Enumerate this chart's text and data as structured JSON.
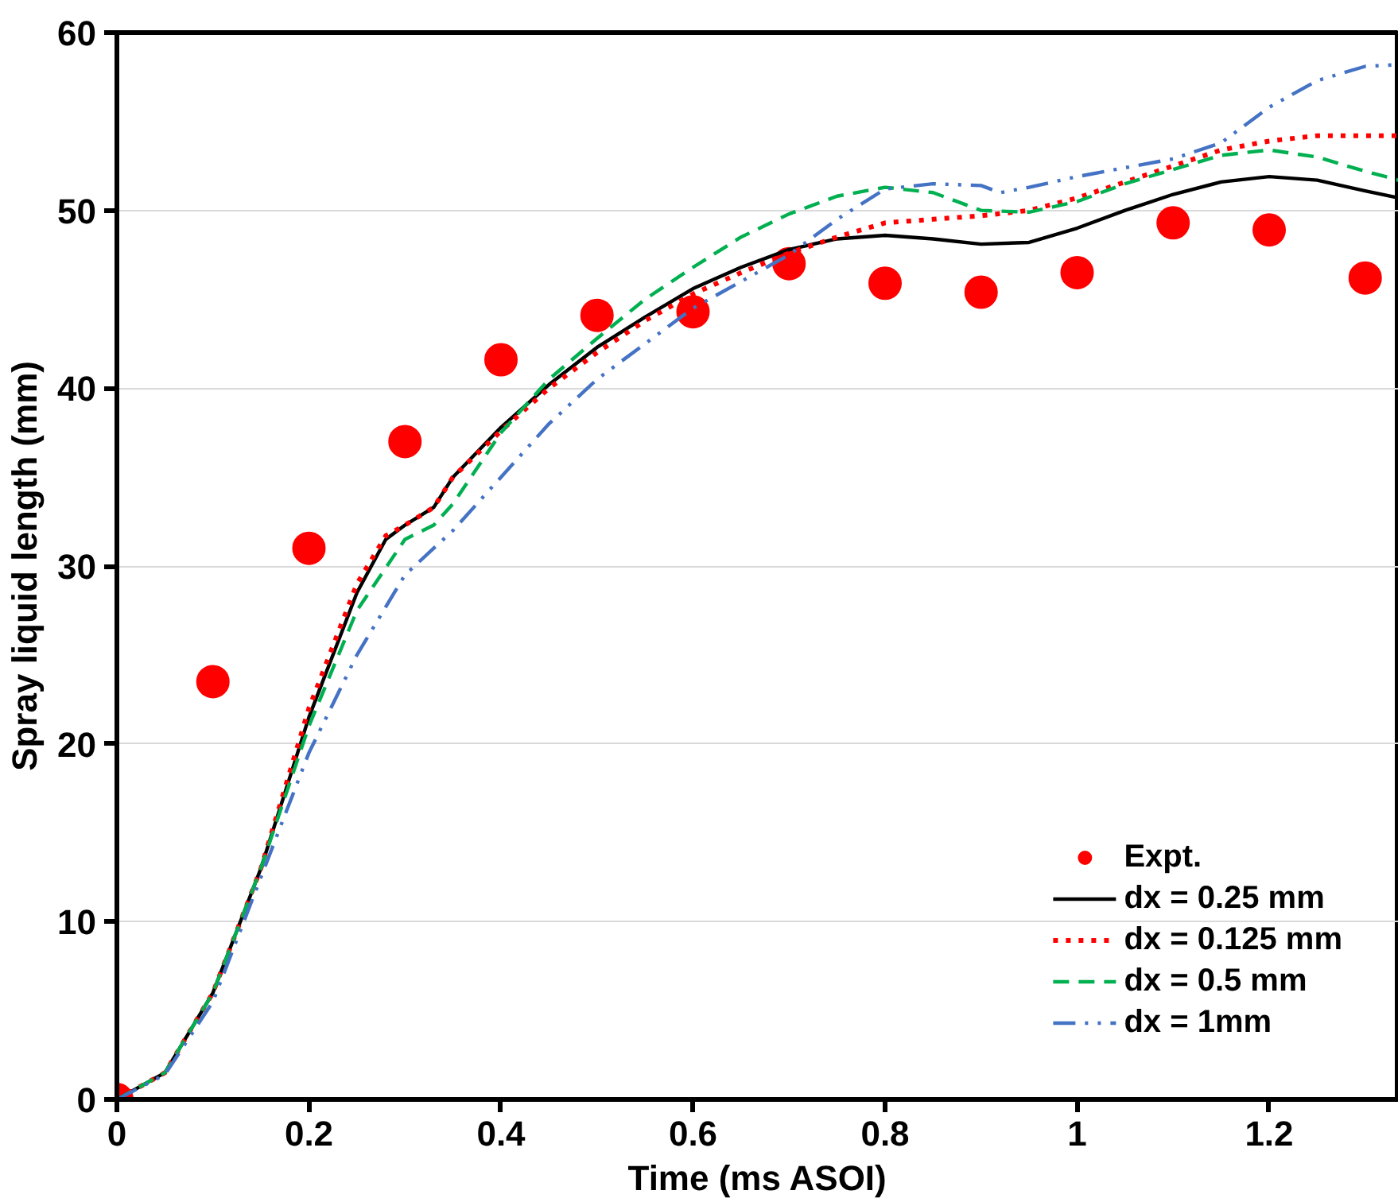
{
  "chart_data": {
    "type": "line",
    "xlabel": "Time (ms ASOI)",
    "ylabel": "Spray liquid length (mm)",
    "xlim": [
      0,
      1.335
    ],
    "xticks": [
      0,
      0.2,
      0.4,
      0.6,
      0.8,
      1,
      1.2
    ],
    "ylim": [
      0,
      60
    ],
    "yticks": [
      0,
      10,
      20,
      30,
      40,
      50,
      60
    ],
    "grid": "y",
    "legend": "bottom right",
    "series": [
      {
        "name": "Expt.",
        "type": "scatter",
        "marker": "circle",
        "color": "#ff0000",
        "x": [
          0,
          0.1,
          0.2,
          0.3,
          0.4,
          0.5,
          0.6,
          0.7,
          0.8,
          0.9,
          1.0,
          1.1,
          1.2,
          1.3
        ],
        "values": [
          0,
          23.5,
          31.0,
          37.0,
          41.6,
          44.1,
          44.3,
          47.0,
          45.9,
          45.4,
          46.5,
          49.3,
          48.9,
          46.2
        ]
      },
      {
        "name": "dx = 0.25 mm",
        "line_style": "solid",
        "color": "#000000",
        "x": [
          0,
          0.05,
          0.1,
          0.15,
          0.2,
          0.25,
          0.28,
          0.3,
          0.33,
          0.35,
          0.4,
          0.45,
          0.5,
          0.55,
          0.6,
          0.65,
          0.7,
          0.75,
          0.8,
          0.85,
          0.9,
          0.95,
          1.0,
          1.05,
          1.1,
          1.15,
          1.2,
          1.25,
          1.3,
          1.335
        ],
        "values": [
          0,
          1.5,
          6,
          13,
          21.5,
          28.5,
          31.5,
          32.3,
          33.3,
          35,
          37.8,
          40.2,
          42.3,
          44,
          45.6,
          46.8,
          47.8,
          48.4,
          48.6,
          48.4,
          48.1,
          48.2,
          49,
          50,
          50.9,
          51.6,
          51.9,
          51.7,
          51.1,
          50.7
        ]
      },
      {
        "name": "dx = 0.125 mm",
        "line_style": "dotted",
        "color": "#ff0000",
        "x": [
          0,
          0.05,
          0.1,
          0.15,
          0.2,
          0.25,
          0.28,
          0.3,
          0.33,
          0.35,
          0.4,
          0.45,
          0.5,
          0.55,
          0.6,
          0.65,
          0.7,
          0.75,
          0.8,
          0.85,
          0.9,
          0.95,
          1.0,
          1.05,
          1.1,
          1.15,
          1.2,
          1.25,
          1.3,
          1.335
        ],
        "values": [
          0,
          1.5,
          6,
          13,
          22,
          29,
          31.7,
          32.3,
          33.3,
          35,
          37.6,
          40,
          42,
          43.8,
          45.3,
          46.5,
          47.6,
          48.5,
          49.3,
          49.5,
          49.7,
          50,
          50.7,
          51.6,
          52.5,
          53.4,
          53.9,
          54.2,
          54.2,
          54.2
        ]
      },
      {
        "name": "dx = 0.5 mm",
        "line_style": "dashed",
        "color": "#00b050",
        "x": [
          0,
          0.05,
          0.1,
          0.15,
          0.2,
          0.25,
          0.3,
          0.33,
          0.35,
          0.4,
          0.45,
          0.5,
          0.55,
          0.6,
          0.65,
          0.7,
          0.75,
          0.8,
          0.85,
          0.9,
          0.95,
          1.0,
          1.05,
          1.1,
          1.15,
          1.2,
          1.25,
          1.3,
          1.335
        ],
        "values": [
          0,
          1.5,
          6,
          13,
          21,
          27.5,
          31.5,
          32.3,
          33.5,
          37.5,
          40.5,
          42.8,
          45,
          46.8,
          48.5,
          49.8,
          50.8,
          51.3,
          51.0,
          50.0,
          49.9,
          50.5,
          51.5,
          52.3,
          53.1,
          53.4,
          53.0,
          52.2,
          51.7
        ]
      },
      {
        "name": "dx = 1mm",
        "line_style": "dashdot",
        "color": "#4472c4",
        "x": [
          0,
          0.05,
          0.1,
          0.15,
          0.2,
          0.25,
          0.3,
          0.35,
          0.4,
          0.45,
          0.5,
          0.55,
          0.6,
          0.65,
          0.7,
          0.75,
          0.8,
          0.85,
          0.9,
          0.92,
          0.95,
          1.0,
          1.05,
          1.1,
          1.15,
          1.2,
          1.25,
          1.3,
          1.335
        ],
        "values": [
          0,
          1.4,
          5.5,
          12.5,
          19.5,
          25,
          29.5,
          32,
          35,
          38,
          40.5,
          42.5,
          44.5,
          46,
          47.5,
          49.5,
          51.2,
          51.5,
          51.4,
          51,
          51.3,
          51.9,
          52.4,
          52.9,
          53.8,
          55.8,
          57.3,
          58.1,
          58.2
        ]
      }
    ]
  }
}
